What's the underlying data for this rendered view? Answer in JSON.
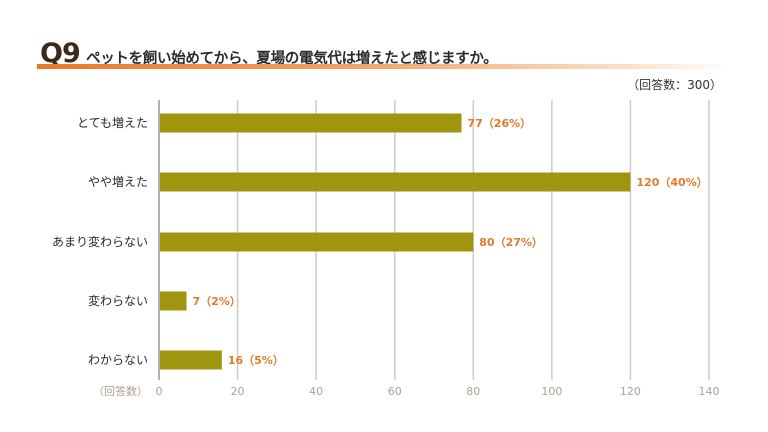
{
  "header": {
    "q_number": "Q9",
    "title": "ペットを飼い始めてから、夏場の電気代は増えたと感じますか。",
    "respondents": "（回答数：300）"
  },
  "chart_data": {
    "type": "bar",
    "orientation": "horizontal",
    "categories": [
      "とても増えた",
      "やや増えた",
      "あまり変わらない",
      "変わらない",
      "わからない"
    ],
    "values": [
      77,
      120,
      80,
      7,
      16
    ],
    "percents": [
      "26%",
      "40%",
      "27%",
      "2%",
      "5%"
    ],
    "value_labels": [
      "77（26%）",
      "120（40%）",
      "80（27%）",
      "7（2%）",
      "16（5%）"
    ],
    "xlabel": "（回答数）",
    "xlim": [
      0,
      140
    ],
    "xticks": [
      0,
      20,
      40,
      60,
      80,
      100,
      120,
      140
    ],
    "grid": true,
    "colors": {
      "bar": "#a0950f",
      "label": "#e07b2a",
      "grid": "#cccccc",
      "axis_text": "#b0a095"
    }
  }
}
